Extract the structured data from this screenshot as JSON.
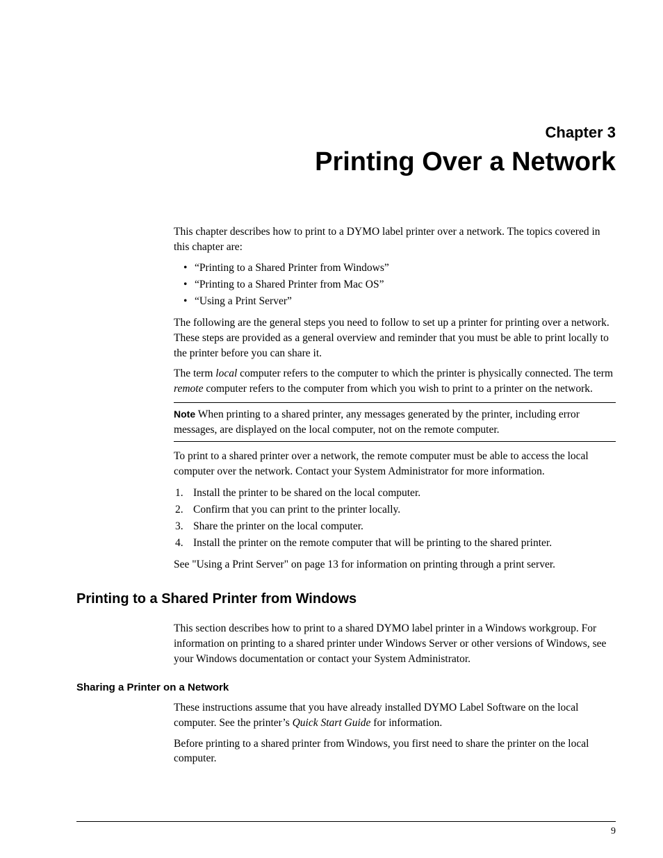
{
  "chapter": {
    "label": "Chapter 3",
    "title": "Printing Over a Network"
  },
  "intro": {
    "p1": "This chapter describes how to print to a DYMO label printer over a network. The topics covered in this chapter are:",
    "bullets": [
      "“Printing to a Shared Printer from Windows”",
      "“Printing to a Shared Printer from Mac OS”",
      "“Using a Print Server”"
    ],
    "p2": "The following are the general steps you need to follow to set up a printer for printing over a network. These steps are provided as a general overview and reminder that you must be able to print locally to the printer before you can share it.",
    "p3_pre": "The term ",
    "p3_local": "local",
    "p3_mid": " computer refers to the computer to which the printer is physically connected. The term ",
    "p3_remote": "remote",
    "p3_post": " computer refers to the computer from which you wish to print to a printer on the network.",
    "note_label": "Note",
    "note_text": "  When printing to a shared printer, any messages generated by the printer, including error messages, are displayed on the local computer, not on the remote computer.",
    "p4": "To print to a shared printer over a network, the remote computer must be able to access the local computer over the network. Contact your System Administrator for more information.",
    "steps": [
      "Install the printer to be shared on the local computer.",
      "Confirm that you can print to the printer locally.",
      "Share the printer on the local computer.",
      "Install the printer on the remote computer that will be printing to the shared printer."
    ],
    "p5": "See \"Using a Print Server\" on page 13 for information on printing through a print server."
  },
  "section1": {
    "title": "Printing to a Shared Printer from Windows",
    "p1": "This section describes how to print to a shared DYMO label printer in a Windows workgroup. For information on printing to a shared printer under Windows Server or other versions of Windows, see your Windows documentation or contact your System Administrator."
  },
  "section2": {
    "title": "Sharing a Printer on a Network",
    "p1_pre": "These instructions assume that you have already installed DYMO Label Software on the local computer. See the printer’s ",
    "p1_ital": "Quick Start Guide",
    "p1_post": " for information.",
    "p2": "Before printing to a shared printer from Windows, you first need to share the printer on the local computer."
  },
  "page_number": "9"
}
